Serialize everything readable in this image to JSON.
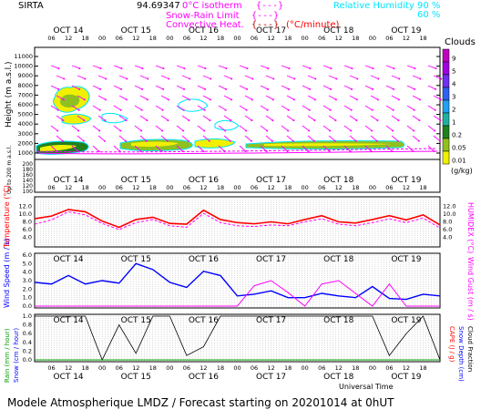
{
  "header": {
    "site": "SIRTA",
    "coords": "94.69347",
    "legend_isotherm": "0°C isotherm",
    "legend_snow_rain": "Snow-Rain Limit",
    "legend_convective": "Convective Heat.",
    "convective_unit": "(°C/minute)",
    "rh_label": "Relative Humidity",
    "rh_90": "90 %",
    "rh_60": "60 %",
    "bracket_symbol": "{---}"
  },
  "colors": {
    "magenta": "#ff00ff",
    "red": "#ff0000",
    "cyan": "#00e5ff",
    "blue": "#0000ff",
    "green": "#00a000",
    "black": "#000000"
  },
  "days": [
    "OCT 14",
    "OCT 15",
    "OCT 16",
    "OCT 17",
    "OCT 18",
    "OCT 19"
  ],
  "hours": [
    "06",
    "12",
    "18",
    "00"
  ],
  "clouds": {
    "title": "Clouds",
    "unit": "(g/kg)",
    "scale": [
      "9",
      "5",
      "4",
      "3",
      "2",
      "1",
      "0.2",
      "0.05",
      "0.01"
    ],
    "scale_colors": [
      "#c000c0",
      "#a000e0",
      "#7030f0",
      "#3060f0",
      "#20a0f0",
      "#20b0a0",
      "#208020",
      "#90c020",
      "#f0f000"
    ]
  },
  "height_axis": {
    "label": "Height  (m a.s.l.)",
    "upper_ticks": [
      "11000",
      "10000",
      "9000",
      "8000",
      "7000",
      "6000",
      "5000",
      "4000",
      "3000",
      "2000",
      "1000"
    ],
    "lower_label": "Up to 200 m a.s.l.",
    "lower_ticks": [
      "200",
      "180",
      "160",
      "140",
      "120",
      "100"
    ]
  },
  "temperature": {
    "ylabel": "Temperature (°C)",
    "rlabel": "HUMIDEX (°C)",
    "ticks": [
      "4.0",
      "6.0",
      "8.0",
      "10.0",
      "12.0"
    ],
    "ticks_right": [
      "12.0",
      "10.0",
      "8.0",
      "6.0",
      "4.0"
    ]
  },
  "wind": {
    "ylabel": "Wind Speed (m / s)",
    "rlabel": "Wind Gust (m / s)",
    "ticks": [
      "0.0",
      "1.0",
      "2.0",
      "3.0",
      "4.0",
      "5.0",
      "6.0"
    ]
  },
  "precip": {
    "ylabel_rain": "Rain (mm / hour)",
    "ylabel_snow": "Snow (cm / hour)",
    "rlabel_cape": "CAPE (J / g)",
    "rlabel_snowdepth": "Snow Depth (cm)",
    "rlabel_cloud": "Cloud Fraction",
    "ticks": [
      "0.0",
      "0.2",
      "0.4",
      "0.6",
      "0.8",
      "1.0"
    ],
    "xlabel": "Universal Time"
  },
  "footer": "Modele Atmospherique LMDZ / Forecast starting on 20201014 at 0hUT",
  "chart_data": [
    {
      "type": "line",
      "title": "Temperature",
      "x_hours_from_start": [
        0,
        6,
        12,
        18,
        24,
        30,
        36,
        42,
        48,
        54,
        60,
        66,
        72,
        78,
        84,
        90,
        96,
        102,
        108,
        114,
        120,
        126,
        132,
        138,
        144
      ],
      "series": [
        {
          "name": "Temperature",
          "values": [
            8.8,
            9.5,
            11.2,
            10.6,
            8.2,
            6.6,
            8.6,
            9.2,
            7.6,
            7.4,
            11.0,
            8.6,
            7.8,
            7.5,
            8.0,
            7.5,
            8.6,
            9.6,
            8.0,
            7.7,
            8.6,
            9.6,
            8.5,
            9.8,
            7.2
          ]
        },
        {
          "name": "HUMIDEX",
          "values": [
            7.4,
            8.5,
            10.6,
            9.8,
            7.6,
            6.0,
            7.8,
            8.6,
            7.0,
            6.6,
            10.2,
            7.8,
            7.0,
            6.8,
            7.2,
            7.0,
            8.0,
            8.8,
            7.4,
            7.0,
            7.8,
            8.8,
            7.8,
            9.0,
            6.4
          ]
        }
      ],
      "ylim": [
        2,
        14
      ]
    },
    {
      "type": "line",
      "title": "Wind",
      "x_hours_from_start": [
        0,
        6,
        12,
        18,
        24,
        30,
        36,
        42,
        48,
        54,
        60,
        66,
        72,
        78,
        84,
        90,
        96,
        102,
        108,
        114,
        120,
        126,
        132,
        138,
        144
      ],
      "series": [
        {
          "name": "Wind Speed",
          "values": [
            2.8,
            2.6,
            3.6,
            2.6,
            3.0,
            2.7,
            5.0,
            4.3,
            2.8,
            2.2,
            4.1,
            3.6,
            1.2,
            1.4,
            1.8,
            1.0,
            1.0,
            1.5,
            1.2,
            1.0,
            2.3,
            0.9,
            0.8,
            1.4,
            1.2
          ]
        },
        {
          "name": "Wind Gust",
          "values": [
            0,
            0,
            0,
            0,
            0,
            0,
            0,
            0,
            0,
            0,
            0,
            0,
            0,
            2.4,
            3.0,
            1.6,
            0,
            2.6,
            3.0,
            1.5,
            0,
            2.6,
            0,
            0,
            0
          ]
        }
      ],
      "ylim": [
        0,
        6
      ]
    },
    {
      "type": "line",
      "title": "Precipitation",
      "x_hours_from_start": [
        0,
        6,
        12,
        18,
        24,
        30,
        36,
        42,
        48,
        54,
        60,
        66,
        72,
        78,
        84,
        90,
        96,
        102,
        108,
        114,
        120,
        126,
        132,
        138,
        144
      ],
      "series": [
        {
          "name": "Cloud Fraction",
          "values": [
            1.0,
            1.0,
            1.0,
            1.0,
            0.0,
            0.8,
            0.15,
            1.0,
            1.0,
            0.1,
            0.3,
            1.0,
            1.0,
            1.0,
            1.0,
            1.0,
            1.0,
            1.0,
            1.0,
            1.0,
            1.0,
            0.1,
            0.6,
            1.0,
            0.0
          ]
        },
        {
          "name": "Rain",
          "values": [
            0,
            0,
            0,
            0,
            0,
            0,
            0,
            0,
            0,
            0,
            0,
            0,
            0,
            0,
            0,
            0,
            0,
            0,
            0,
            0,
            0,
            0,
            0,
            0,
            0
          ]
        }
      ],
      "ylim": [
        0,
        1.0
      ]
    }
  ]
}
